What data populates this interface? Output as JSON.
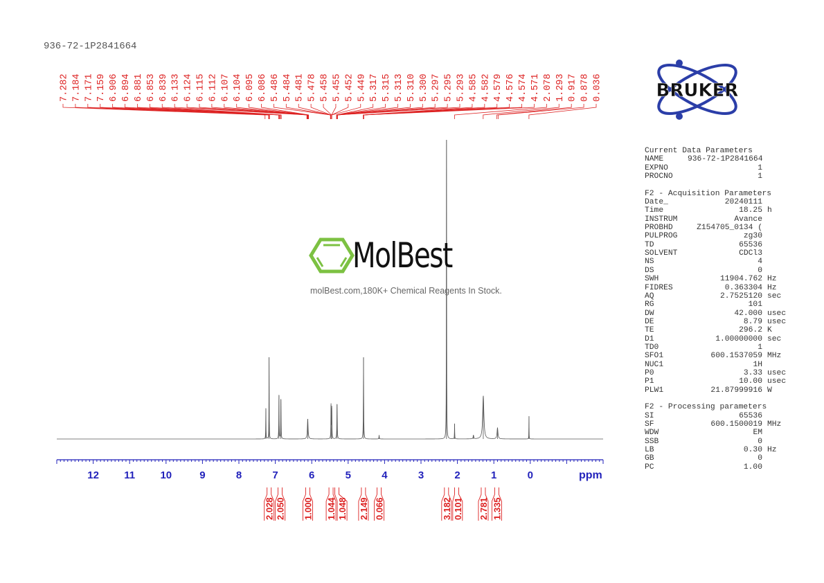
{
  "title": "936-72-1P2841664",
  "watermark": {
    "brand": "MolBest",
    "tagline": "molBest.com,180K+ Chemical Reagents In Stock."
  },
  "logo": {
    "text": "BRUKER",
    "color": "#2b3ea8"
  },
  "parameters": {
    "sections": [
      {
        "heading": "Current Data Parameters",
        "rows": [
          {
            "name": "NAME",
            "value": "936-72-1P2841664",
            "unit": ""
          },
          {
            "name": "EXPNO",
            "value": "1",
            "unit": ""
          },
          {
            "name": "PROCNO",
            "value": "1",
            "unit": ""
          }
        ]
      },
      {
        "heading": "F2 - Acquisition Parameters",
        "rows": [
          {
            "name": "Date_",
            "value": "20240111",
            "unit": ""
          },
          {
            "name": "Time",
            "value": "18.25",
            "unit": "h"
          },
          {
            "name": "INSTRUM",
            "value": "Avance",
            "unit": ""
          },
          {
            "name": "PROBHD",
            "value": "Z154705_0134 (",
            "unit": ""
          },
          {
            "name": "PULPROG",
            "value": "zg30",
            "unit": ""
          },
          {
            "name": "TD",
            "value": "65536",
            "unit": ""
          },
          {
            "name": "SOLVENT",
            "value": "CDCl3",
            "unit": ""
          },
          {
            "name": "NS",
            "value": "4",
            "unit": ""
          },
          {
            "name": "DS",
            "value": "0",
            "unit": ""
          },
          {
            "name": "SWH",
            "value": "11904.762",
            "unit": "Hz"
          },
          {
            "name": "FIDRES",
            "value": "0.363304",
            "unit": "Hz"
          },
          {
            "name": "AQ",
            "value": "2.7525120",
            "unit": "sec"
          },
          {
            "name": "RG",
            "value": "101",
            "unit": ""
          },
          {
            "name": "DW",
            "value": "42.000",
            "unit": "usec"
          },
          {
            "name": "DE",
            "value": "8.79",
            "unit": "usec"
          },
          {
            "name": "TE",
            "value": "296.2",
            "unit": "K"
          },
          {
            "name": "D1",
            "value": "1.00000000",
            "unit": "sec"
          },
          {
            "name": "TD0",
            "value": "1",
            "unit": ""
          },
          {
            "name": "SFO1",
            "value": "600.1537059",
            "unit": "MHz"
          },
          {
            "name": "NUC1",
            "value": "1H",
            "unit": ""
          },
          {
            "name": "P0",
            "value": "3.33",
            "unit": "usec"
          },
          {
            "name": "P1",
            "value": "10.00",
            "unit": "usec"
          },
          {
            "name": "PLW1",
            "value": "21.87999916",
            "unit": "W"
          }
        ]
      },
      {
        "heading": "F2 - Processing parameters",
        "rows": [
          {
            "name": "SI",
            "value": "65536",
            "unit": ""
          },
          {
            "name": "SF",
            "value": "600.1500019",
            "unit": "MHz"
          },
          {
            "name": "WDW",
            "value": "EM",
            "unit": ""
          },
          {
            "name": "SSB",
            "value": "0",
            "unit": ""
          },
          {
            "name": "LB",
            "value": "0.30",
            "unit": "Hz"
          },
          {
            "name": "GB",
            "value": "0",
            "unit": ""
          },
          {
            "name": "PC",
            "value": "1.00",
            "unit": ""
          }
        ]
      }
    ]
  },
  "chart_data": {
    "type": "line",
    "xlabel": "ppm",
    "xlim": [
      13.0,
      -2.0
    ],
    "x_ticks": [
      "12",
      "11",
      "10",
      "9",
      "8",
      "7",
      "6",
      "5",
      "4",
      "3",
      "2",
      "1",
      "0"
    ],
    "grid": false,
    "colors": {
      "trace": "#555555",
      "axis": "#2222bb",
      "annotation": "#dd2222"
    },
    "peaks_relative_intensity": [
      {
        "ppm": 7.26,
        "intensity": 10.2,
        "width": 0.004
      },
      {
        "ppm": 7.171,
        "intensity": 27.3,
        "width": 0.004
      },
      {
        "ppm": 6.9,
        "intensity": 14.6,
        "width": 0.005
      },
      {
        "ppm": 6.846,
        "intensity": 13.2,
        "width": 0.005
      },
      {
        "ppm": 6.11,
        "intensity": 6.7,
        "width": 0.012
      },
      {
        "ppm": 5.47,
        "intensity": 11.3,
        "width": 0.005
      },
      {
        "ppm": 5.45,
        "intensity": 10.4,
        "width": 0.005
      },
      {
        "ppm": 5.305,
        "intensity": 11.6,
        "width": 0.006
      },
      {
        "ppm": 4.578,
        "intensity": 27.3,
        "width": 0.005
      },
      {
        "ppm": 4.15,
        "intensity": 1.2,
        "width": 0.006
      },
      {
        "ppm": 2.3,
        "intensity": 100,
        "width": 0.004
      },
      {
        "ppm": 2.078,
        "intensity": 5.1,
        "width": 0.004
      },
      {
        "ppm": 1.56,
        "intensity": 1.2,
        "width": 0.01
      },
      {
        "ppm": 1.29,
        "intensity": 14.4,
        "width": 0.02
      },
      {
        "ppm": 0.9,
        "intensity": 3.7,
        "width": 0.015
      },
      {
        "ppm": 0.036,
        "intensity": 7.6,
        "width": 0.003
      }
    ],
    "peak_labels": [
      "7.282",
      "7.184",
      "7.171",
      "7.159",
      "6.906",
      "6.894",
      "6.881",
      "6.853",
      "6.839",
      "6.133",
      "6.124",
      "6.115",
      "6.112",
      "6.107",
      "6.104",
      "6.095",
      "6.086",
      "5.486",
      "5.484",
      "5.481",
      "5.478",
      "5.458",
      "5.455",
      "5.452",
      "5.449",
      "5.317",
      "5.315",
      "5.313",
      "5.310",
      "5.300",
      "5.297",
      "5.295",
      "5.293",
      "4.585",
      "4.582",
      "4.579",
      "4.576",
      "4.574",
      "4.571",
      "2.078",
      "1.293",
      "0.917",
      "0.878",
      "0.036"
    ],
    "integrals": [
      {
        "ppm": 7.17,
        "value": "2.028"
      },
      {
        "ppm": 6.87,
        "value": "2.050"
      },
      {
        "ppm": 6.11,
        "value": "1.000"
      },
      {
        "ppm": 5.47,
        "value": "1.044"
      },
      {
        "ppm": 5.31,
        "value": "1.048"
      },
      {
        "ppm": 4.58,
        "value": "2.149"
      },
      {
        "ppm": 4.15,
        "value": "0.066"
      },
      {
        "ppm": 2.3,
        "value": "3.182"
      },
      {
        "ppm": 2.02,
        "value": "0.101"
      },
      {
        "ppm": 1.29,
        "value": "2.781"
      },
      {
        "ppm": 0.92,
        "value": "1.335"
      }
    ]
  }
}
